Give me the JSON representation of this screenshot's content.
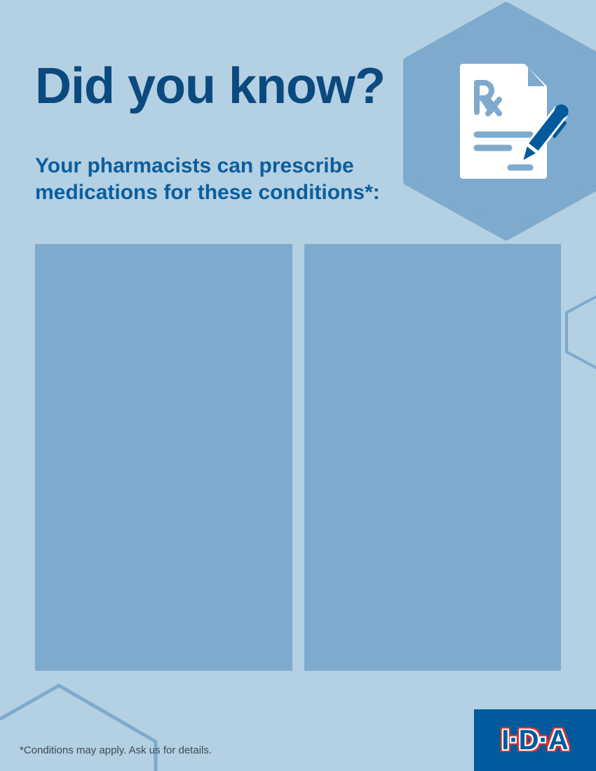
{
  "header": {
    "title": "Did you know?",
    "subtitle": "Your pharmacists can prescribe medications for these conditions*:"
  },
  "icon": {
    "name": "prescription-document-pen-icon",
    "glyph": "Rx"
  },
  "footer": {
    "footnote": "*Conditions may apply. Ask us for details.",
    "logo_text": "I·D·A"
  },
  "colors": {
    "background": "#b4d0e3",
    "panel": "#7eaacd",
    "title": "#0b4a7f",
    "subtitle": "#0a5e9f",
    "brand_blue": "#005a9c",
    "brand_red": "#e8312a"
  }
}
